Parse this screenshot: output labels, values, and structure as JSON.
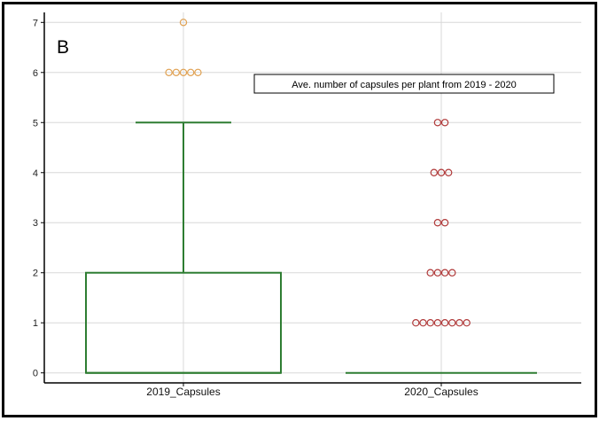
{
  "panel_label": "B",
  "chart_data": {
    "type": "box",
    "title": "Ave. number of capsules per plant from 2019 - 2020",
    "xlabel": "",
    "ylabel": "",
    "categories": [
      "2019_Capsules",
      "2020_Capsules"
    ],
    "ylim": [
      -0.2,
      7.2
    ],
    "yticks": [
      0,
      1,
      2,
      3,
      4,
      5,
      6,
      7
    ],
    "grid": true,
    "boxes": [
      {
        "category": "2019_Capsules",
        "min": 0,
        "q1": 0,
        "median": 0,
        "q3": 2,
        "whisker_high": 5,
        "outliers": [
          {
            "y": 6,
            "count": 5
          },
          {
            "y": 7,
            "count": 1
          }
        ]
      },
      {
        "category": "2020_Capsules",
        "min": 0,
        "q1": 0,
        "median": 0,
        "q3": 0,
        "whisker_high": 0,
        "outliers": [
          {
            "y": 1,
            "count": 8
          },
          {
            "y": 2,
            "count": 4
          },
          {
            "y": 3,
            "count": 2
          },
          {
            "y": 4,
            "count": 3
          },
          {
            "y": 5,
            "count": 2
          }
        ]
      }
    ],
    "colors": {
      "box": "#2e7d32",
      "outlier_2019": "#e0a050",
      "outlier_2020": "#b03a3a",
      "grid": "#d8d8d8",
      "axis": "#000000"
    }
  }
}
